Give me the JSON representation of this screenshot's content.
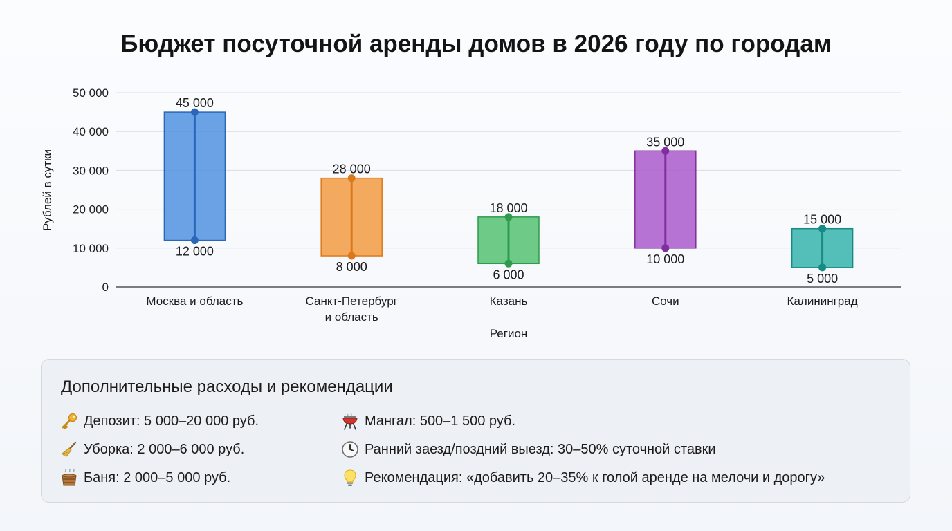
{
  "title": "Бюджет посуточной аренды домов в 2026 году по городам",
  "chart_data": {
    "type": "bar",
    "subtype": "floating-range",
    "title": "Бюджет посуточной аренды домов в 2026 году по городам",
    "xlabel": "Регион",
    "ylabel": "Рублей в сутки",
    "ylim": [
      0,
      50000
    ],
    "yticks": [
      0,
      10000,
      20000,
      30000,
      40000,
      50000
    ],
    "ytick_labels": [
      "0",
      "10 000",
      "20 000",
      "30 000",
      "40 000",
      "50 000"
    ],
    "grid": true,
    "categories": [
      [
        "Москва и область"
      ],
      [
        "Санкт-Петербург",
        "и область"
      ],
      [
        "Казань"
      ],
      [
        "Сочи"
      ],
      [
        "Калининград"
      ]
    ],
    "min": [
      12000,
      8000,
      6000,
      10000,
      5000
    ],
    "max": [
      45000,
      28000,
      18000,
      35000,
      15000
    ],
    "min_labels": [
      "12 000",
      "8 000",
      "6 000",
      "10 000",
      "5 000"
    ],
    "max_labels": [
      "45 000",
      "28 000",
      "18 000",
      "35 000",
      "15 000"
    ],
    "colors": [
      "#4a8fdf",
      "#f3983a",
      "#4fbf6c",
      "#a856c9",
      "#2fb2aa"
    ],
    "edge_colors": [
      "#2a67b8",
      "#d9791c",
      "#2f9a4c",
      "#7f2f9e",
      "#178a84"
    ]
  },
  "extras": {
    "title": "Дополнительные расходы и рекомендации",
    "items": [
      {
        "icon": "key-icon",
        "text": "Депозит: 5 000–20 000 руб."
      },
      {
        "icon": "broom-icon",
        "text": "Уборка: 2 000–6 000 руб."
      },
      {
        "icon": "bath-tub-icon",
        "text": "Баня: 2 000–5 000 руб."
      },
      {
        "icon": "grill-icon",
        "text": "Мангал: 500–1 500 руб."
      },
      {
        "icon": "clock-icon",
        "text": "Ранний заезд/поздний выезд: 30–50% суточной ставки"
      },
      {
        "icon": "light-bulb-icon",
        "text": "Рекомендация: «добавить 20–35% к голой аренде на мелочи и дорогу»"
      }
    ]
  }
}
